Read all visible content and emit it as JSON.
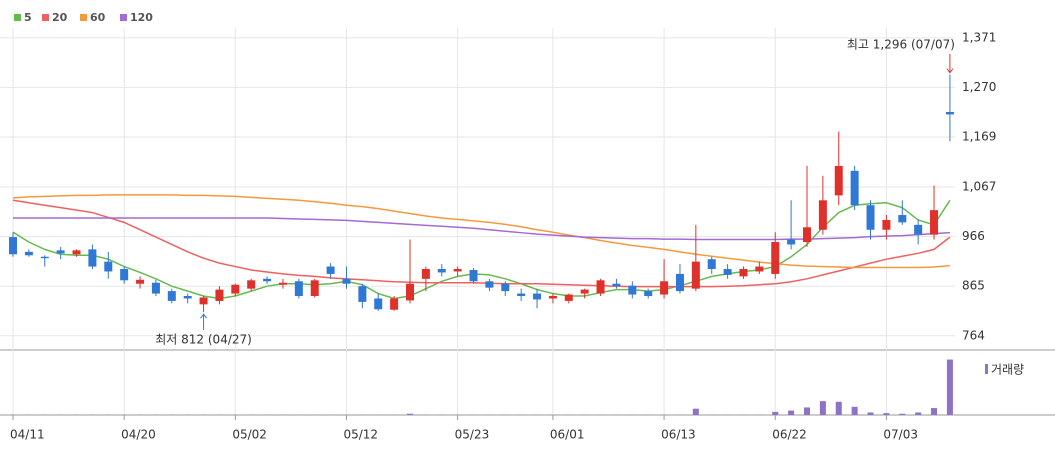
{
  "chart_data": {
    "type": "candlestick",
    "categories": [
      "04/11",
      null,
      null,
      null,
      null,
      null,
      null,
      "04/20",
      null,
      null,
      null,
      null,
      null,
      null,
      "05/02",
      null,
      null,
      null,
      null,
      null,
      null,
      "05/12",
      null,
      null,
      null,
      null,
      null,
      null,
      "05/23",
      null,
      null,
      null,
      null,
      null,
      "06/01",
      null,
      null,
      null,
      null,
      null,
      null,
      "06/13",
      null,
      null,
      null,
      null,
      null,
      null,
      "06/22",
      null,
      null,
      null,
      null,
      null,
      null,
      "07/03",
      null,
      null,
      null,
      null
    ],
    "open": [
      965,
      935,
      925,
      938,
      930,
      940,
      915,
      900,
      870,
      872,
      855,
      845,
      828,
      835,
      850,
      860,
      880,
      868,
      875,
      845,
      905,
      880,
      865,
      840,
      817,
      836,
      880,
      900,
      895,
      898,
      875,
      870,
      850,
      850,
      840,
      835,
      850,
      850,
      870,
      866,
      855,
      848,
      890,
      860,
      920,
      900,
      885,
      895,
      890,
      960,
      955,
      980,
      1050,
      1100,
      1030,
      980,
      1010,
      990,
      970,
      1220
    ],
    "high": [
      975,
      940,
      928,
      945,
      940,
      950,
      935,
      905,
      885,
      878,
      860,
      850,
      845,
      865,
      870,
      880,
      885,
      880,
      880,
      880,
      912,
      905,
      870,
      850,
      845,
      960,
      905,
      910,
      905,
      902,
      880,
      875,
      860,
      860,
      850,
      850,
      860,
      880,
      880,
      875,
      860,
      920,
      910,
      990,
      925,
      910,
      905,
      915,
      975,
      1040,
      1110,
      1090,
      1180,
      1110,
      1040,
      1010,
      1040,
      1000,
      1070,
      1296
    ],
    "low": [
      925,
      925,
      905,
      920,
      925,
      900,
      880,
      870,
      860,
      845,
      830,
      830,
      812,
      828,
      845,
      855,
      870,
      860,
      840,
      842,
      880,
      860,
      820,
      815,
      815,
      830,
      855,
      885,
      885,
      870,
      855,
      845,
      835,
      820,
      830,
      830,
      840,
      845,
      860,
      840,
      840,
      840,
      850,
      855,
      890,
      880,
      880,
      890,
      880,
      940,
      945,
      970,
      1030,
      1020,
      960,
      960,
      990,
      950,
      960,
      1160
    ],
    "close": [
      930,
      928,
      922,
      932,
      938,
      905,
      895,
      877,
      878,
      850,
      835,
      840,
      842,
      858,
      868,
      877,
      875,
      872,
      845,
      877,
      890,
      870,
      833,
      818,
      840,
      870,
      900,
      893,
      900,
      875,
      862,
      855,
      845,
      838,
      845,
      848,
      858,
      877,
      865,
      848,
      845,
      875,
      855,
      915,
      900,
      888,
      900,
      905,
      955,
      950,
      985,
      1040,
      1110,
      1030,
      980,
      1000,
      995,
      970,
      1020,
      1215
    ],
    "up_color": "#e0302b",
    "down_color": "#2f78d6",
    "series": [
      {
        "name": "5",
        "color": "#66bb4f",
        "values": [
          975,
          955,
          940,
          930,
          928,
          928,
          920,
          905,
          893,
          880,
          865,
          855,
          845,
          840,
          845,
          855,
          865,
          870,
          870,
          868,
          870,
          875,
          868,
          850,
          840,
          845,
          860,
          875,
          885,
          890,
          888,
          880,
          870,
          858,
          850,
          845,
          845,
          852,
          858,
          858,
          855,
          858,
          866,
          875,
          885,
          890,
          895,
          898,
          905,
          925,
          950,
          985,
          1015,
          1030,
          1033,
          1035,
          1025,
          1000,
          990,
          1040
        ]
      },
      {
        "name": "20",
        "color": "#f06060",
        "values": [
          1040,
          1035,
          1030,
          1025,
          1020,
          1015,
          1005,
          995,
          980,
          965,
          950,
          935,
          922,
          912,
          905,
          898,
          894,
          890,
          887,
          885,
          882,
          880,
          878,
          876,
          874,
          873,
          872,
          872,
          872,
          872,
          871,
          870,
          870,
          870,
          869,
          868,
          867,
          866,
          865,
          864,
          864,
          864,
          864,
          864,
          864,
          865,
          866,
          868,
          870,
          874,
          880,
          888,
          896,
          904,
          912,
          920,
          926,
          932,
          940,
          965
        ]
      },
      {
        "name": "60",
        "color": "#f59a3c",
        "values": [
          1045,
          1047,
          1048,
          1049,
          1050,
          1050,
          1051,
          1051,
          1051,
          1051,
          1051,
          1050,
          1050,
          1049,
          1048,
          1046,
          1044,
          1042,
          1040,
          1037,
          1034,
          1030,
          1027,
          1023,
          1018,
          1013,
          1008,
          1004,
          1001,
          998,
          995,
          991,
          986,
          980,
          975,
          969,
          964,
          958,
          953,
          948,
          944,
          940,
          935,
          930,
          926,
          922,
          918,
          914,
          911,
          908,
          906,
          905,
          904,
          903,
          903,
          903,
          903,
          903,
          904,
          907
        ]
      },
      {
        "name": "120",
        "color": "#a46ad6",
        "values": [
          1004,
          1004,
          1004,
          1004,
          1004,
          1004,
          1004,
          1004,
          1004,
          1004,
          1004,
          1004,
          1004,
          1004,
          1004,
          1004,
          1004,
          1003,
          1002,
          1001,
          1000,
          999,
          997,
          995,
          993,
          991,
          989,
          987,
          985,
          983,
          980,
          977,
          974,
          971,
          969,
          967,
          965,
          964,
          963,
          962,
          962,
          961,
          961,
          960,
          960,
          960,
          960,
          960,
          960,
          961,
          961,
          962,
          963,
          964,
          966,
          967,
          968,
          970,
          972,
          974
        ]
      }
    ],
    "ylim": [
      735,
      1391
    ],
    "yticks": [
      {
        "value": 764,
        "label": "764"
      },
      {
        "value": 865,
        "label": "865"
      },
      {
        "value": 966,
        "label": "966"
      },
      {
        "value": 1067,
        "label": "1,067"
      },
      {
        "value": 1169,
        "label": "1,169"
      },
      {
        "value": 1270,
        "label": "1,270"
      },
      {
        "value": 1371,
        "label": "1,371"
      }
    ],
    "volume": {
      "label": "거래량",
      "color": "#8e72c8",
      "ylim": [
        0,
        100
      ],
      "values": [
        0.5,
        0.5,
        0.5,
        0.5,
        0.5,
        0.5,
        0.5,
        0.5,
        0.5,
        0.5,
        0.5,
        0.5,
        0.5,
        0.5,
        0.5,
        0.5,
        0.5,
        0.5,
        0.5,
        0.5,
        0.5,
        0.5,
        0.5,
        0.5,
        0.5,
        2,
        0.5,
        0.5,
        0.5,
        0.5,
        0.5,
        0.5,
        0.5,
        0.5,
        0.5,
        0.5,
        0.5,
        0.5,
        0.5,
        0.5,
        0.5,
        0.5,
        0.5,
        10,
        0.5,
        0.5,
        0.5,
        0.5,
        5,
        7,
        12,
        22,
        21,
        13,
        4,
        3,
        2,
        4,
        11,
        88
      ]
    },
    "high_annotation": "최고 1,296 (07/07)",
    "low_annotation": "최저 812 (04/27)"
  }
}
